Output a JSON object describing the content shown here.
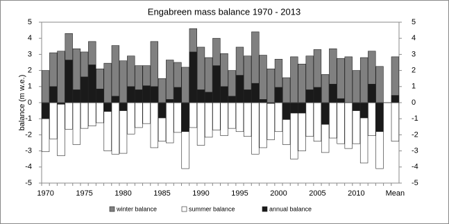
{
  "chart_data": {
    "type": "bar",
    "title": "Engabreen mass balance 1970 - 2013",
    "y_label": "balance (m w.e.)",
    "categories": [
      "1970",
      null,
      null,
      null,
      null,
      "1975",
      null,
      null,
      null,
      null,
      "1980",
      null,
      null,
      null,
      null,
      "1985",
      null,
      null,
      null,
      null,
      "1990",
      null,
      null,
      null,
      null,
      "1995",
      null,
      null,
      null,
      null,
      "2000",
      null,
      null,
      null,
      null,
      "2005",
      null,
      null,
      null,
      null,
      "2010",
      null,
      null,
      null,
      null,
      "Mean"
    ],
    "series": [
      {
        "name": "winter balance",
        "color": "#808080",
        "values": [
          2.0,
          3.1,
          3.2,
          4.3,
          3.35,
          3.15,
          3.8,
          2.1,
          2.45,
          3.55,
          2.6,
          2.9,
          2.3,
          2.3,
          3.8,
          1.5,
          2.65,
          2.5,
          2.2,
          4.6,
          3.45,
          2.8,
          4.0,
          3.05,
          2.0,
          3.45,
          2.9,
          4.4,
          2.95,
          2.1,
          2.7,
          1.55,
          2.85,
          2.4,
          2.9,
          3.3,
          1.75,
          3.35,
          2.75,
          2.85,
          2.0,
          2.8,
          3.2,
          2.25,
          null,
          2.85
        ]
      },
      {
        "name": "summer balance",
        "color": "#ffffff",
        "values": [
          -3.05,
          -2.25,
          -3.3,
          -1.65,
          -2.6,
          -1.6,
          -1.45,
          -1.25,
          -3.0,
          -3.2,
          -3.15,
          -1.95,
          -1.55,
          -1.3,
          -2.8,
          -2.4,
          -2.5,
          -1.85,
          -4.1,
          -1.55,
          -2.65,
          -2.15,
          -1.7,
          -2.05,
          -1.6,
          -1.8,
          -2.1,
          -3.2,
          -2.8,
          -2.3,
          -1.8,
          -2.6,
          -3.5,
          -3.0,
          -2.1,
          -2.4,
          -3.1,
          -2.2,
          -2.55,
          -2.85,
          -2.55,
          -3.75,
          -2.05,
          -4.1,
          null,
          -2.4
        ]
      },
      {
        "name": "annual balance",
        "color": "#1a1a1a",
        "values": [
          -1.0,
          1.0,
          -0.1,
          2.65,
          0.8,
          1.6,
          2.35,
          0.85,
          -0.55,
          0.4,
          -0.5,
          1.0,
          0.8,
          1.05,
          1.0,
          -0.95,
          0.2,
          0.95,
          -1.8,
          3.15,
          0.8,
          0.65,
          2.3,
          1.0,
          0.4,
          1.7,
          0.8,
          1.2,
          0.2,
          -0.05,
          0.95,
          -1.05,
          -0.65,
          -0.65,
          0.8,
          0.95,
          -1.35,
          1.15,
          0.25,
          0.0,
          -0.5,
          -0.95,
          1.15,
          -1.8,
          null,
          0.45
        ]
      }
    ],
    "ylim": [
      -5,
      5
    ],
    "yticks": [
      -5,
      -4,
      -3,
      -2,
      -1,
      0,
      1,
      2,
      3,
      4,
      5
    ],
    "y2lim": [
      -5,
      5
    ],
    "y2ticks": [
      -5,
      -4,
      -3,
      -2,
      -1,
      0,
      1,
      2,
      3,
      4,
      5
    ],
    "legend": "bottom"
  }
}
